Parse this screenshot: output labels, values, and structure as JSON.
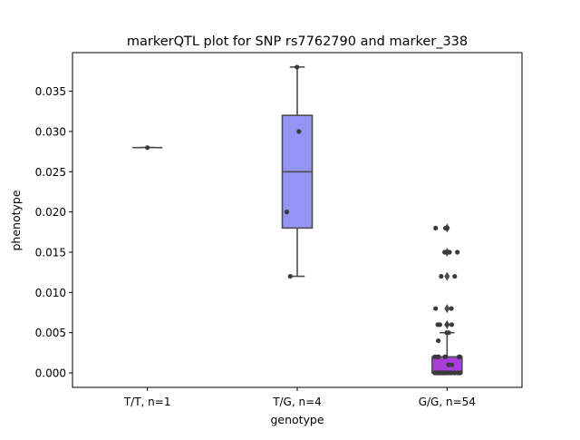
{
  "chart_data": {
    "type": "box",
    "title": "markerQTL plot for SNP rs7762790 and marker_338",
    "xlabel": "genotype",
    "ylabel": "phenotype",
    "categories": [
      "T/T, n=1",
      "T/G, n=4",
      "G/G, n=54"
    ],
    "ylim": [
      -0.0018,
      0.0398
    ],
    "yticks": [
      0.0,
      0.005,
      0.01,
      0.015,
      0.02,
      0.025,
      0.03,
      0.035
    ],
    "ytick_labels": [
      "0.000",
      "0.005",
      "0.010",
      "0.015",
      "0.020",
      "0.025",
      "0.030",
      "0.035"
    ],
    "grid": false,
    "colors": {
      "T/T, n=1": "#9c9cf2",
      "T/G, n=4": "#9494f5",
      "G/G, n=54": "#a93edb",
      "lines": "#4d4d4d",
      "points": "#3b3b3b"
    },
    "boxes": [
      {
        "category": "T/T, n=1",
        "min": 0.028,
        "q1": 0.028,
        "median": 0.028,
        "q3": 0.028,
        "max": 0.028,
        "outliers": []
      },
      {
        "category": "T/G, n=4",
        "min": 0.012,
        "q1": 0.018,
        "median": 0.025,
        "q3": 0.032,
        "max": 0.038,
        "outliers": []
      },
      {
        "category": "G/G, n=54",
        "min": 0.0,
        "q1": 0.0,
        "median": 0.0,
        "q3": 0.002,
        "max": 0.005,
        "outliers": [
          0.006,
          0.008,
          0.012,
          0.015,
          0.018
        ]
      }
    ],
    "points": [
      {
        "category": "T/T, n=1",
        "values": [
          0.028
        ]
      },
      {
        "category": "T/G, n=4",
        "values": [
          0.038,
          0.03,
          0.02,
          0.012
        ]
      },
      {
        "category": "G/G, n=54",
        "values": [
          0.018,
          0.018,
          0.018,
          0.015,
          0.015,
          0.015,
          0.012,
          0.012,
          0.008,
          0.008,
          0.006,
          0.006,
          0.006,
          0.006,
          0.005,
          0.005,
          0.004,
          0.002,
          0.002,
          0.002,
          0.002,
          0.002,
          0.002,
          0.002,
          0.002,
          0.001,
          0.001,
          0.0,
          0.0,
          0.0,
          0.0,
          0.0,
          0.0,
          0.0,
          0.0,
          0.0,
          0.0,
          0.0,
          0.0,
          0.0,
          0.0,
          0.0,
          0.0,
          0.0,
          0.0,
          0.0,
          0.0,
          0.0,
          0.0,
          0.0,
          0.0,
          0.0,
          0.0,
          0.0
        ]
      }
    ]
  }
}
